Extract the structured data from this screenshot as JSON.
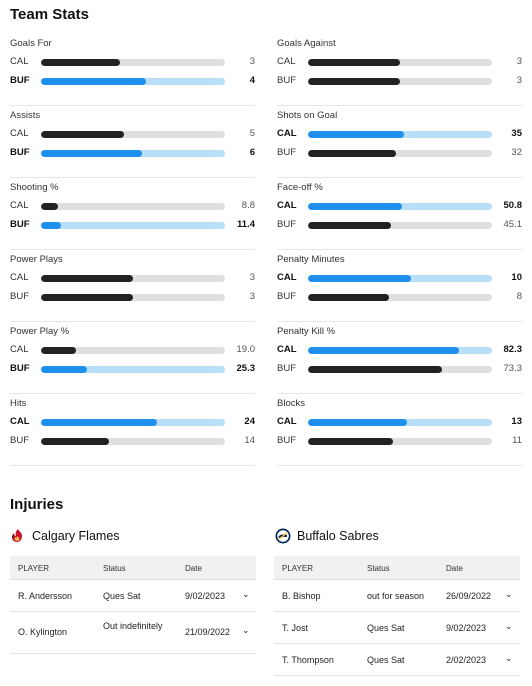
{
  "team_stats": {
    "title": "Team Stats",
    "stats": [
      {
        "label": "Goals For",
        "col": "left",
        "rows": [
          {
            "team": "CAL",
            "value": "3",
            "fraction": 0.43,
            "leader": false
          },
          {
            "team": "BUF",
            "value": "4",
            "fraction": 0.57,
            "leader": true
          }
        ]
      },
      {
        "label": "Goals Against",
        "col": "right",
        "rows": [
          {
            "team": "CAL",
            "value": "3",
            "fraction": 0.5,
            "leader": false
          },
          {
            "team": "BUF",
            "value": "3",
            "fraction": 0.5,
            "leader": false
          }
        ]
      },
      {
        "label": "Assists",
        "col": "left",
        "rows": [
          {
            "team": "CAL",
            "value": "5",
            "fraction": 0.45,
            "leader": false
          },
          {
            "team": "BUF",
            "value": "6",
            "fraction": 0.55,
            "leader": true
          }
        ]
      },
      {
        "label": "Shots on Goal",
        "col": "right",
        "rows": [
          {
            "team": "CAL",
            "value": "35",
            "fraction": 0.52,
            "leader": true
          },
          {
            "team": "BUF",
            "value": "32",
            "fraction": 0.48,
            "leader": false
          }
        ]
      },
      {
        "label": "Shooting %",
        "col": "left",
        "rows": [
          {
            "team": "CAL",
            "value": "8.8",
            "fraction": 0.09,
            "leader": false
          },
          {
            "team": "BUF",
            "value": "11.4",
            "fraction": 0.11,
            "leader": true
          }
        ]
      },
      {
        "label": "Face-off %",
        "col": "right",
        "rows": [
          {
            "team": "CAL",
            "value": "50.8",
            "fraction": 0.508,
            "leader": true
          },
          {
            "team": "BUF",
            "value": "45.1",
            "fraction": 0.451,
            "leader": false
          }
        ]
      },
      {
        "label": "Power Plays",
        "col": "left",
        "rows": [
          {
            "team": "CAL",
            "value": "3",
            "fraction": 0.5,
            "leader": false
          },
          {
            "team": "BUF",
            "value": "3",
            "fraction": 0.5,
            "leader": false
          }
        ]
      },
      {
        "label": "Penalty Minutes",
        "col": "right",
        "rows": [
          {
            "team": "CAL",
            "value": "10",
            "fraction": 0.56,
            "leader": true
          },
          {
            "team": "BUF",
            "value": "8",
            "fraction": 0.44,
            "leader": false
          }
        ]
      },
      {
        "label": "Power Play %",
        "col": "left",
        "rows": [
          {
            "team": "CAL",
            "value": "19.0",
            "fraction": 0.19,
            "leader": false
          },
          {
            "team": "BUF",
            "value": "25.3",
            "fraction": 0.253,
            "leader": true
          }
        ]
      },
      {
        "label": "Penalty Kill %",
        "col": "right",
        "rows": [
          {
            "team": "CAL",
            "value": "82.3",
            "fraction": 0.823,
            "leader": true
          },
          {
            "team": "BUF",
            "value": "73.3",
            "fraction": 0.733,
            "leader": false
          }
        ]
      },
      {
        "label": "Hits",
        "col": "left",
        "rows": [
          {
            "team": "CAL",
            "value": "24",
            "fraction": 0.63,
            "leader": true
          },
          {
            "team": "BUF",
            "value": "14",
            "fraction": 0.37,
            "leader": false
          }
        ]
      },
      {
        "label": "Blocks",
        "col": "right",
        "rows": [
          {
            "team": "CAL",
            "value": "13",
            "fraction": 0.54,
            "leader": true
          },
          {
            "team": "BUF",
            "value": "11",
            "fraction": 0.46,
            "leader": false
          }
        ]
      }
    ]
  },
  "injuries": {
    "title": "Injuries",
    "headers": {
      "player": "PLAYER",
      "status": "Status",
      "date": "Date"
    },
    "teams": [
      {
        "name": "Calgary Flames",
        "logo": "flame-logo-icon",
        "color": "#c8102e",
        "rows": [
          {
            "player": "R. Andersson",
            "status": "Ques Sat",
            "date": "9/02/2023"
          },
          {
            "player": "O. Kylington",
            "status": "Out indefinitely",
            "date": "21/09/2022"
          }
        ]
      },
      {
        "name": "Buffalo Sabres",
        "logo": "sabres-logo-icon",
        "color": "#002654",
        "rows": [
          {
            "player": "B. Bishop",
            "status": "out for season",
            "date": "26/09/2022"
          },
          {
            "player": "T. Jost",
            "status": "Ques Sat",
            "date": "9/02/2023"
          },
          {
            "player": "T. Thompson",
            "status": "Ques Sat",
            "date": "2/02/2023"
          }
        ]
      }
    ]
  },
  "colors": {
    "leader_bar": "#1e90ee",
    "leader_track": "#b9defa",
    "bar": "#222222",
    "track": "#e0e0e0"
  }
}
